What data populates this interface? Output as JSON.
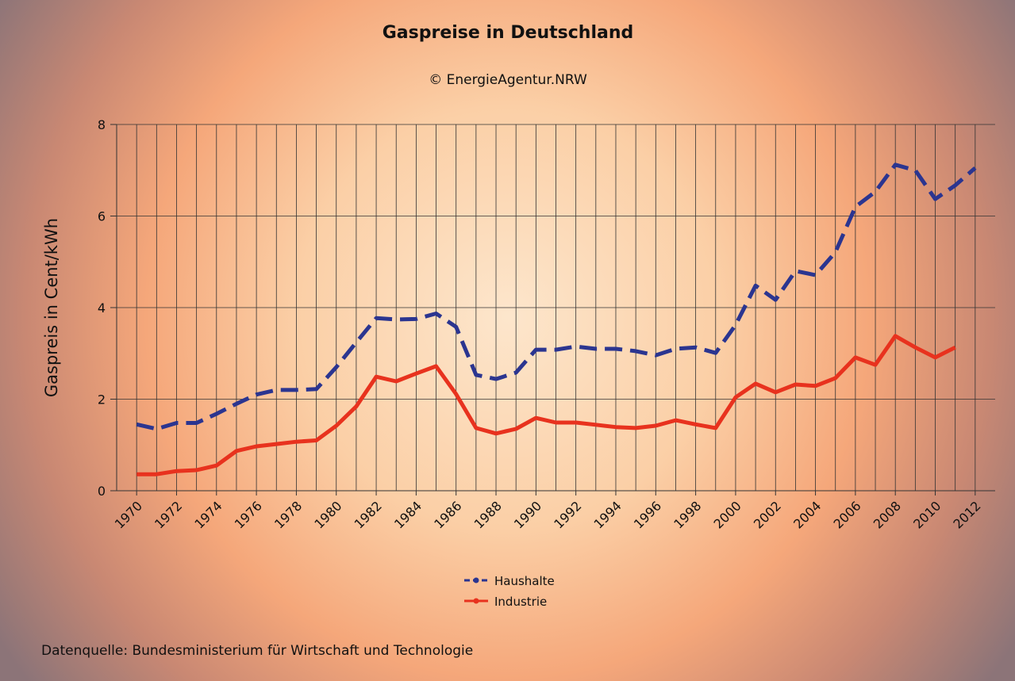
{
  "chart_data": {
    "type": "line",
    "title": "Gaspreise in Deutschland",
    "subtitle": "© EnergieAgentur.NRW",
    "ylabel": "Gaspreis in Cent/kWh",
    "source": "Datenquelle: Bundesministerium für Wirtschaft und Technologie",
    "x": [
      1970,
      1971,
      1972,
      1973,
      1974,
      1975,
      1976,
      1977,
      1978,
      1979,
      1980,
      1981,
      1982,
      1983,
      1984,
      1985,
      1986,
      1987,
      1988,
      1989,
      1990,
      1991,
      1992,
      1993,
      1994,
      1995,
      1996,
      1997,
      1998,
      1999,
      2000,
      2001,
      2002,
      2003,
      2004,
      2005,
      2006,
      2007,
      2008,
      2009,
      2010,
      2011,
      2012
    ],
    "xlim": [
      1969,
      2013
    ],
    "xticks": [
      1970,
      1972,
      1974,
      1976,
      1978,
      1980,
      1982,
      1984,
      1986,
      1988,
      1990,
      1992,
      1994,
      1996,
      1998,
      2000,
      2002,
      2004,
      2006,
      2008,
      2010,
      2012
    ],
    "ylim": [
      0,
      8
    ],
    "yticks": [
      0,
      2,
      4,
      6,
      8
    ],
    "grid": true,
    "legend": "bottom",
    "series": [
      {
        "name": "Haushalte",
        "color": "#2b3590",
        "linestyle": "dashed",
        "values": [
          1.45,
          1.35,
          1.48,
          1.48,
          1.68,
          1.9,
          2.1,
          2.2,
          2.2,
          2.22,
          2.7,
          3.24,
          3.77,
          3.74,
          3.75,
          3.87,
          3.58,
          2.53,
          2.44,
          2.58,
          3.08,
          3.08,
          3.15,
          3.1,
          3.1,
          3.05,
          2.96,
          3.1,
          3.13,
          3.01,
          3.62,
          4.48,
          4.17,
          4.8,
          4.71,
          5.21,
          6.2,
          6.53,
          7.12,
          7.0,
          6.37,
          6.67,
          7.05
        ]
      },
      {
        "name": "Industrie",
        "color": "#e8321e",
        "linestyle": "solid",
        "values": [
          0.36,
          0.36,
          0.43,
          0.45,
          0.55,
          0.87,
          0.97,
          1.02,
          1.07,
          1.1,
          1.42,
          1.84,
          2.49,
          2.39,
          2.56,
          2.72,
          2.11,
          1.37,
          1.25,
          1.35,
          1.59,
          1.49,
          1.49,
          1.44,
          1.39,
          1.37,
          1.42,
          1.54,
          1.45,
          1.37,
          2.04,
          2.34,
          2.15,
          2.32,
          2.29,
          2.46,
          2.91,
          2.75,
          3.38,
          3.13,
          2.91,
          3.13,
          null
        ]
      }
    ]
  }
}
